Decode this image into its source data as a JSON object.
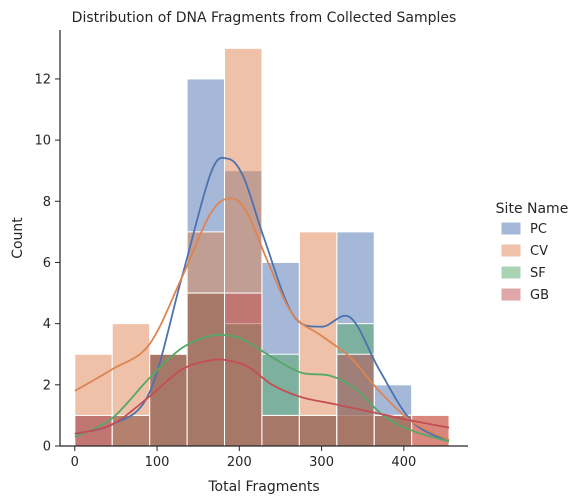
{
  "chart_data": {
    "type": "histogram",
    "title": "Distribution of DNA Fragments from Collected Samples",
    "xlabel": "Total Fragments",
    "ylabel": "Count",
    "xlim": [
      -18,
      478
    ],
    "ylim": [
      0,
      13.6
    ],
    "xticks": [
      0,
      100,
      200,
      300,
      400
    ],
    "yticks": [
      0,
      2,
      4,
      6,
      8,
      10,
      12
    ],
    "bin_edges": [
      0,
      45.5,
      91,
      136.5,
      182,
      227.5,
      273,
      318.5,
      364,
      409.5,
      455
    ],
    "legend": {
      "title": "Site Name",
      "placement": "right"
    },
    "series": [
      {
        "name": "PC",
        "color": "#4c72b0",
        "counts": [
          1,
          0,
          3,
          12,
          9,
          6,
          1,
          7,
          2,
          0
        ],
        "kde_x": [
          0,
          45,
          90,
          130,
          165,
          185,
          205,
          230,
          265,
          300,
          335,
          370,
          410,
          455
        ],
        "kde_y": [
          0.4,
          0.7,
          1.7,
          5.5,
          8.9,
          9.4,
          8.8,
          6.8,
          4.3,
          3.9,
          4.2,
          2.5,
          0.8,
          0.15
        ]
      },
      {
        "name": "CV",
        "color": "#dd8452",
        "counts": [
          3,
          4,
          3,
          7,
          13,
          1,
          7,
          1,
          1,
          1
        ],
        "kde_x": [
          0,
          45,
          90,
          130,
          165,
          190,
          210,
          235,
          265,
          300,
          335,
          370,
          410,
          455
        ],
        "kde_y": [
          1.8,
          2.5,
          3.3,
          5.5,
          7.6,
          8.1,
          7.6,
          6.0,
          4.3,
          3.6,
          2.9,
          1.8,
          0.8,
          0.2
        ]
      },
      {
        "name": "SF",
        "color": "#55a868",
        "counts": [
          0,
          1,
          3,
          5,
          4,
          3,
          1,
          4,
          1,
          0
        ],
        "kde_x": [
          0,
          45,
          90,
          130,
          165,
          190,
          210,
          240,
          275,
          310,
          340,
          375,
          410,
          455
        ],
        "kde_y": [
          0.3,
          0.9,
          2.2,
          3.2,
          3.6,
          3.6,
          3.4,
          2.9,
          2.4,
          2.3,
          1.9,
          1.0,
          0.5,
          0.15
        ]
      },
      {
        "name": "GB",
        "color": "#c44e52",
        "counts": [
          1,
          1,
          3,
          5,
          5,
          1,
          1,
          3,
          1,
          1
        ],
        "kde_x": [
          0,
          45,
          90,
          130,
          165,
          185,
          210,
          240,
          275,
          310,
          345,
          380,
          415,
          455
        ],
        "kde_y": [
          0.4,
          0.7,
          1.6,
          2.5,
          2.8,
          2.8,
          2.6,
          2.0,
          1.6,
          1.4,
          1.2,
          1.0,
          0.8,
          0.6
        ]
      }
    ]
  }
}
